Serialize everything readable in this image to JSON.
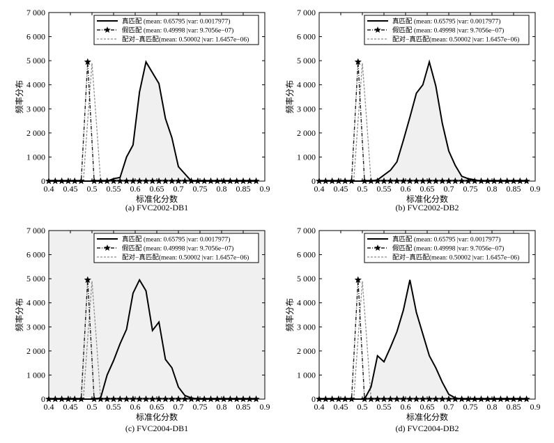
{
  "chart_data": [
    {
      "type": "area",
      "caption": "(a) FVC2002-DB1",
      "xlabel": "标准化分数",
      "ylabel": "频率分布",
      "xlim": [
        0.4,
        0.9
      ],
      "ylim": [
        0,
        7000
      ],
      "xticks": [
        0.4,
        0.45,
        0.5,
        0.55,
        0.6,
        0.65,
        0.7,
        0.75,
        0.8,
        0.85,
        0.9
      ],
      "xtick_labels": [
        "0.4",
        "0.45",
        "0.5",
        "0.55",
        "0.6",
        "0.65",
        "0.7",
        "0.75",
        "0.8",
        "0.85",
        "0.9"
      ],
      "yticks": [
        0,
        1000,
        2000,
        3000,
        4000,
        5000,
        6000,
        7000
      ],
      "ytick_labels": [
        "0",
        "1 000",
        "2 000",
        "3 000",
        "4 000",
        "5 000",
        "6 000",
        "7 000"
      ],
      "legend_position": "top-right",
      "grid": false,
      "shaded_area": "genuine-only",
      "series": [
        {
          "name": "真匹配 (mean: 0.65795 |var: 0.0017977)",
          "style": "solid",
          "x": [
            0.4,
            0.415,
            0.43,
            0.445,
            0.46,
            0.475,
            0.49,
            0.505,
            0.52,
            0.535,
            0.55,
            0.565,
            0.58,
            0.595,
            0.61,
            0.625,
            0.64,
            0.655,
            0.67,
            0.685,
            0.7,
            0.715,
            0.73,
            0.745,
            0.76,
            0.775,
            0.79,
            0.805,
            0.82,
            0.835,
            0.85,
            0.865,
            0.88
          ],
          "y": [
            0,
            0,
            0,
            0,
            0,
            0,
            0,
            0,
            0,
            0,
            100,
            150,
            1000,
            1500,
            3700,
            4950,
            4500,
            4050,
            2600,
            1800,
            600,
            300,
            0,
            0,
            0,
            0,
            0,
            0,
            0,
            0,
            0,
            0,
            0
          ]
        },
        {
          "name": "假匹配 (mean: 0.49998 |var: 9.7056e−07)",
          "style": "dash-dot-star",
          "x": [
            0.4,
            0.415,
            0.43,
            0.445,
            0.46,
            0.475,
            0.49,
            0.505,
            0.52,
            0.535,
            0.55,
            0.565,
            0.58,
            0.595,
            0.61,
            0.625,
            0.64,
            0.655,
            0.67,
            0.685,
            0.7,
            0.715,
            0.73,
            0.745,
            0.76,
            0.775,
            0.79,
            0.805,
            0.82,
            0.835,
            0.85,
            0.865,
            0.88
          ],
          "y": [
            0,
            0,
            0,
            0,
            0,
            0,
            4950,
            0,
            0,
            0,
            0,
            0,
            0,
            0,
            0,
            0,
            0,
            0,
            0,
            0,
            0,
            0,
            0,
            0,
            0,
            0,
            0,
            0,
            0,
            0,
            0,
            0,
            0
          ]
        },
        {
          "name": "配对−真匹配(mean: 0.50002 |var: 1.6457e−06)",
          "style": "dashed-gray",
          "x": [
            0.48,
            0.49,
            0.5,
            0.51,
            0.52
          ],
          "y": [
            0,
            2500,
            4900,
            2500,
            0
          ]
        }
      ]
    },
    {
      "type": "area",
      "caption": "(b) FVC2002-DB2",
      "xlabel": "标准化分数",
      "ylabel": "频率分布",
      "xlim": [
        0.4,
        0.9
      ],
      "ylim": [
        0,
        7000
      ],
      "xticks": [
        0.4,
        0.45,
        0.5,
        0.55,
        0.6,
        0.65,
        0.7,
        0.75,
        0.8,
        0.85,
        0.9
      ],
      "xtick_labels": [
        "0.4",
        "0.45",
        "0.5",
        "0.55",
        "0.6",
        "0.65",
        "0.7",
        "0.75",
        "0.8",
        "0.85",
        "0.9"
      ],
      "yticks": [
        0,
        1000,
        2000,
        3000,
        4000,
        5000,
        6000,
        7000
      ],
      "ytick_labels": [
        "0",
        "1 000",
        "2 000",
        "3 000",
        "4 000",
        "5 000",
        "6 000",
        "7 000"
      ],
      "legend_position": "top-right",
      "grid": false,
      "shaded_area": "genuine-only",
      "series": [
        {
          "name": "真匹配 (mean: 0.65795 |var: 0.0017977)",
          "style": "solid",
          "x": [
            0.4,
            0.415,
            0.43,
            0.445,
            0.46,
            0.475,
            0.49,
            0.505,
            0.52,
            0.535,
            0.55,
            0.565,
            0.58,
            0.595,
            0.61,
            0.625,
            0.64,
            0.655,
            0.67,
            0.685,
            0.7,
            0.715,
            0.73,
            0.745,
            0.76,
            0.775,
            0.79,
            0.805,
            0.82,
            0.835,
            0.85,
            0.865,
            0.88
          ],
          "y": [
            0,
            0,
            0,
            0,
            0,
            0,
            0,
            0,
            0,
            50,
            250,
            450,
            800,
            1700,
            2650,
            3650,
            4000,
            4950,
            3950,
            2400,
            1250,
            650,
            200,
            100,
            50,
            0,
            0,
            0,
            0,
            0,
            0,
            0,
            0
          ]
        },
        {
          "name": "假匹配 (mean: 0.49998 |var: 9.7056e−07)",
          "style": "dash-dot-star",
          "x": [
            0.4,
            0.415,
            0.43,
            0.445,
            0.46,
            0.475,
            0.49,
            0.505,
            0.52,
            0.535,
            0.55,
            0.565,
            0.58,
            0.595,
            0.61,
            0.625,
            0.64,
            0.655,
            0.67,
            0.685,
            0.7,
            0.715,
            0.73,
            0.745,
            0.76,
            0.775,
            0.79,
            0.805,
            0.82,
            0.835,
            0.85,
            0.865,
            0.88
          ],
          "y": [
            0,
            0,
            0,
            0,
            0,
            0,
            4950,
            0,
            0,
            0,
            0,
            0,
            0,
            0,
            0,
            0,
            0,
            0,
            0,
            0,
            0,
            0,
            0,
            0,
            0,
            0,
            0,
            0,
            0,
            0,
            0,
            0,
            0
          ]
        },
        {
          "name": "配对−真匹配(mean: 0.50002 |var: 1.6457e−06)",
          "style": "dashed-gray",
          "x": [
            0.48,
            0.49,
            0.5,
            0.51,
            0.52
          ],
          "y": [
            0,
            2500,
            4900,
            2500,
            0
          ]
        }
      ]
    },
    {
      "type": "area",
      "caption": "(c) FVC2004-DB1",
      "xlabel": "标准化分数",
      "ylabel": "频率分布",
      "xlim": [
        0.4,
        0.9
      ],
      "ylim": [
        0,
        7000
      ],
      "xticks": [
        0.4,
        0.45,
        0.5,
        0.55,
        0.6,
        0.65,
        0.7,
        0.75,
        0.8,
        0.85,
        0.9
      ],
      "xtick_labels": [
        "0.4",
        "0.45",
        "0.5",
        "0.55",
        "0.6",
        "0.65",
        "0.7",
        "0.75",
        "0.8",
        "0.85",
        "0.9"
      ],
      "yticks": [
        0,
        1000,
        2000,
        3000,
        4000,
        5000,
        6000,
        7000
      ],
      "ytick_labels": [
        "0",
        "1 000",
        "2 000",
        "3 000",
        "4 000",
        "5 000",
        "6 000",
        "7 000"
      ],
      "legend_position": "top-right",
      "grid": false,
      "shaded_area": "whole-plot",
      "series": [
        {
          "name": "真匹配 (mean: 0.65795 |var: 0.0017977)",
          "style": "solid",
          "x": [
            0.4,
            0.415,
            0.43,
            0.445,
            0.46,
            0.475,
            0.49,
            0.505,
            0.52,
            0.535,
            0.55,
            0.565,
            0.58,
            0.595,
            0.61,
            0.625,
            0.64,
            0.655,
            0.67,
            0.685,
            0.7,
            0.715,
            0.73,
            0.745,
            0.76,
            0.775,
            0.79,
            0.805,
            0.82,
            0.835,
            0.85,
            0.865,
            0.88
          ],
          "y": [
            0,
            0,
            0,
            0,
            0,
            0,
            0,
            0,
            50,
            1000,
            1600,
            2300,
            2900,
            4400,
            4950,
            4500,
            2850,
            3200,
            1650,
            1300,
            500,
            150,
            50,
            0,
            0,
            0,
            0,
            0,
            0,
            0,
            0,
            0,
            0
          ]
        },
        {
          "name": "假匹配 (mean: 0.49998 |var: 9.7056e−07)",
          "style": "dash-dot-star",
          "x": [
            0.4,
            0.415,
            0.43,
            0.445,
            0.46,
            0.475,
            0.49,
            0.505,
            0.52,
            0.535,
            0.55,
            0.565,
            0.58,
            0.595,
            0.61,
            0.625,
            0.64,
            0.655,
            0.67,
            0.685,
            0.7,
            0.715,
            0.73,
            0.745,
            0.76,
            0.775,
            0.79,
            0.805,
            0.82,
            0.835,
            0.85,
            0.865,
            0.88
          ],
          "y": [
            0,
            0,
            0,
            0,
            0,
            0,
            4950,
            0,
            0,
            0,
            0,
            0,
            0,
            0,
            0,
            0,
            0,
            0,
            0,
            0,
            0,
            0,
            0,
            0,
            0,
            0,
            0,
            0,
            0,
            0,
            0,
            0,
            0
          ]
        },
        {
          "name": "配对−真匹配(mean: 0.50002 |var: 1.6457e−06)",
          "style": "dashed-gray",
          "x": [
            0.48,
            0.49,
            0.5,
            0.51,
            0.52
          ],
          "y": [
            0,
            2500,
            4900,
            2500,
            0
          ]
        }
      ]
    },
    {
      "type": "area",
      "caption": "(d) FVC2004-DB2",
      "xlabel": "标准化分数",
      "ylabel": "频率分布",
      "xlim": [
        0.4,
        0.9
      ],
      "ylim": [
        0,
        7000
      ],
      "xticks": [
        0.4,
        0.45,
        0.5,
        0.55,
        0.6,
        0.65,
        0.7,
        0.75,
        0.8,
        0.85,
        0.9
      ],
      "xtick_labels": [
        "0.4",
        "0.45",
        "0.5",
        "0.55",
        "0.6",
        "0.65",
        "0.7",
        "0.75",
        "0.8",
        "0.85",
        "0.9"
      ],
      "yticks": [
        0,
        1000,
        2000,
        3000,
        4000,
        5000,
        6000,
        7000
      ],
      "ytick_labels": [
        "0",
        "1 000",
        "2 000",
        "3 000",
        "4 000",
        "5 000",
        "6 000",
        "7 000"
      ],
      "legend_position": "top-right",
      "grid": false,
      "shaded_area": "genuine-only",
      "series": [
        {
          "name": "真匹配 (mean: 0.65795 |var: 0.0017977)",
          "style": "solid",
          "x": [
            0.4,
            0.415,
            0.43,
            0.445,
            0.46,
            0.475,
            0.49,
            0.505,
            0.52,
            0.535,
            0.55,
            0.565,
            0.58,
            0.595,
            0.61,
            0.625,
            0.64,
            0.655,
            0.67,
            0.685,
            0.7,
            0.715,
            0.73,
            0.745,
            0.76,
            0.775,
            0.79,
            0.805,
            0.82,
            0.835,
            0.85,
            0.865,
            0.88
          ],
          "y": [
            0,
            0,
            0,
            0,
            0,
            0,
            0,
            0,
            500,
            1800,
            1550,
            2150,
            2800,
            3700,
            4950,
            3600,
            2700,
            1800,
            1300,
            700,
            200,
            50,
            0,
            0,
            0,
            0,
            0,
            0,
            0,
            0,
            0,
            0,
            0
          ]
        },
        {
          "name": "假匹配 (mean: 0.49998 |var: 9.7056e−07)",
          "style": "dash-dot-star",
          "x": [
            0.4,
            0.415,
            0.43,
            0.445,
            0.46,
            0.475,
            0.49,
            0.505,
            0.52,
            0.535,
            0.55,
            0.565,
            0.58,
            0.595,
            0.61,
            0.625,
            0.64,
            0.655,
            0.67,
            0.685,
            0.7,
            0.715,
            0.73,
            0.745,
            0.76,
            0.775,
            0.79,
            0.805,
            0.82,
            0.835,
            0.85,
            0.865,
            0.88
          ],
          "y": [
            0,
            0,
            0,
            0,
            0,
            0,
            4950,
            0,
            0,
            0,
            0,
            0,
            0,
            0,
            0,
            0,
            0,
            0,
            0,
            0,
            0,
            0,
            0,
            0,
            0,
            0,
            0,
            0,
            0,
            0,
            0,
            0,
            0
          ]
        },
        {
          "name": "配对−真匹配(mean: 0.50002 |var: 1.6457e−06)",
          "style": "dashed-gray",
          "x": [
            0.48,
            0.49,
            0.5,
            0.51,
            0.52
          ],
          "y": [
            0,
            2500,
            4900,
            2500,
            0
          ]
        }
      ]
    }
  ],
  "colors": {
    "genuine_line": "#000000",
    "impostor_line": "#1a1a1a",
    "paired_line": "#8c8c8c",
    "fill": "#f0f0f0",
    "axes": "#000000"
  }
}
